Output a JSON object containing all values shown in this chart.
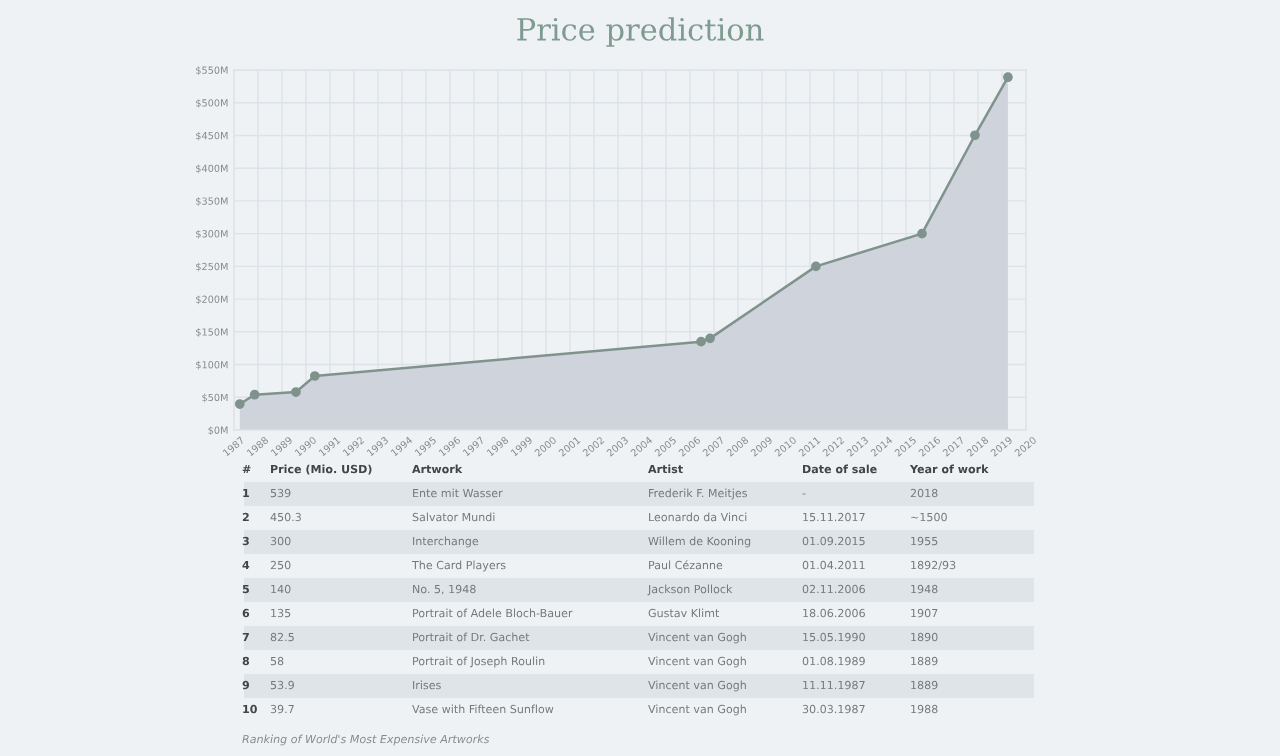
{
  "chart_data": {
    "type": "area",
    "title": "Price prediction",
    "x": [
      "1987-03-30",
      "1987-11-11",
      "1989-08-01",
      "1990-05-15",
      "2006-06-18",
      "2006-11-02",
      "2011-04-01",
      "2015-09-01",
      "2017-11-15",
      "2019-04-01"
    ],
    "series": [
      {
        "color": "#7f928c",
        "values": [
          39.7,
          53.9,
          58,
          82.5,
          135,
          140,
          250,
          300,
          450.3,
          539
        ]
      }
    ],
    "marker": "circle",
    "line_style": "solid",
    "grid": true,
    "xlim": [
      "1987-01-01",
      "2020-01-01"
    ],
    "xticks": [
      {
        "value": "1987",
        "label": "1987"
      },
      {
        "value": "1988",
        "label": "1988"
      },
      {
        "value": "1989",
        "label": "1989"
      },
      {
        "value": "1990",
        "label": "1990"
      },
      {
        "value": "1991",
        "label": "1991"
      },
      {
        "value": "1992",
        "label": "1992"
      },
      {
        "value": "1993",
        "label": "1993"
      },
      {
        "value": "1994",
        "label": "1994"
      },
      {
        "value": "1995",
        "label": "1995"
      },
      {
        "value": "1996",
        "label": "1996"
      },
      {
        "value": "1997",
        "label": "1997"
      },
      {
        "value": "1998",
        "label": "1998"
      },
      {
        "value": "1999",
        "label": "1999"
      },
      {
        "value": "2000",
        "label": "2000"
      },
      {
        "value": "2001",
        "label": "2001"
      },
      {
        "value": "2002",
        "label": "2002"
      },
      {
        "value": "2003",
        "label": "2003"
      },
      {
        "value": "2004",
        "label": "2004"
      },
      {
        "value": "2005",
        "label": "2005"
      },
      {
        "value": "2006",
        "label": "2006"
      },
      {
        "value": "2007",
        "label": "2007"
      },
      {
        "value": "2008",
        "label": "2008"
      },
      {
        "value": "2009",
        "label": "2009"
      },
      {
        "value": "2010",
        "label": "2010"
      },
      {
        "value": "2011",
        "label": "2011"
      },
      {
        "value": "2012",
        "label": "2012"
      },
      {
        "value": "2013",
        "label": "2013"
      },
      {
        "value": "2014",
        "label": "2014"
      },
      {
        "value": "2015",
        "label": "2015"
      },
      {
        "value": "2016",
        "label": "2016"
      },
      {
        "value": "2017",
        "label": "2017"
      },
      {
        "value": "2018",
        "label": "2018"
      },
      {
        "value": "2019",
        "label": "2019"
      },
      {
        "value": "2020",
        "label": "2020"
      }
    ],
    "ylim": [
      0,
      550
    ],
    "yticks": [
      {
        "value": 0,
        "label": "$0M"
      },
      {
        "value": 50,
        "label": "$50M"
      },
      {
        "value": 100,
        "label": "$100M"
      },
      {
        "value": 150,
        "label": "$150M"
      },
      {
        "value": 200,
        "label": "$200M"
      },
      {
        "value": 250,
        "label": "$250M"
      },
      {
        "value": 300,
        "label": "$300M"
      },
      {
        "value": 350,
        "label": "$350M"
      },
      {
        "value": 400,
        "label": "$400M"
      },
      {
        "value": 450,
        "label": "$450M"
      },
      {
        "value": 500,
        "label": "$500M"
      },
      {
        "value": 550,
        "label": "$550M"
      }
    ],
    "annotations": [
      "#",
      "Price (Mio. USD)",
      "Artwork",
      "Artist",
      "Date of sale",
      "Year of work",
      "1",
      "539",
      "Ente mit Wasser",
      "Frederik F. Meitjes",
      "-",
      "2018",
      "2",
      "450.3",
      "Salvator Mundi",
      "Leonardo da Vinci",
      "15.11.2017",
      "~1500",
      "3",
      "300",
      "Interchange",
      "Willem de Kooning",
      "01.09.2015",
      "1955",
      "4",
      "250",
      "The Card Players",
      "Paul Cézanne",
      "01.04.2011",
      "1892/93",
      "5",
      "140",
      "No. 5, 1948",
      "Jackson Pollock",
      "02.11.2006",
      "1948",
      "6",
      "135",
      "Portrait of Adele Bloch-Bauer",
      "Gustav Klimt",
      "18.06.2006",
      "1907",
      "7",
      "82.5",
      "Portrait of Dr. Gachet",
      "Vincent van Gogh",
      "15.05.1990",
      "1890",
      "8",
      "58",
      "Portrait of Joseph Roulin",
      "Vincent van Gogh",
      "01.08.1989",
      "1889",
      "9",
      "53.9",
      "Irises",
      "Vincent van Gogh",
      "11.11.1987",
      "1889",
      "10",
      "39.7",
      "Vase with Fifteen Sunflow",
      "Vincent van Gogh",
      "30.03.1987",
      "1988",
      "Ranking of World's Most Expensive Artworks"
    ]
  }
}
